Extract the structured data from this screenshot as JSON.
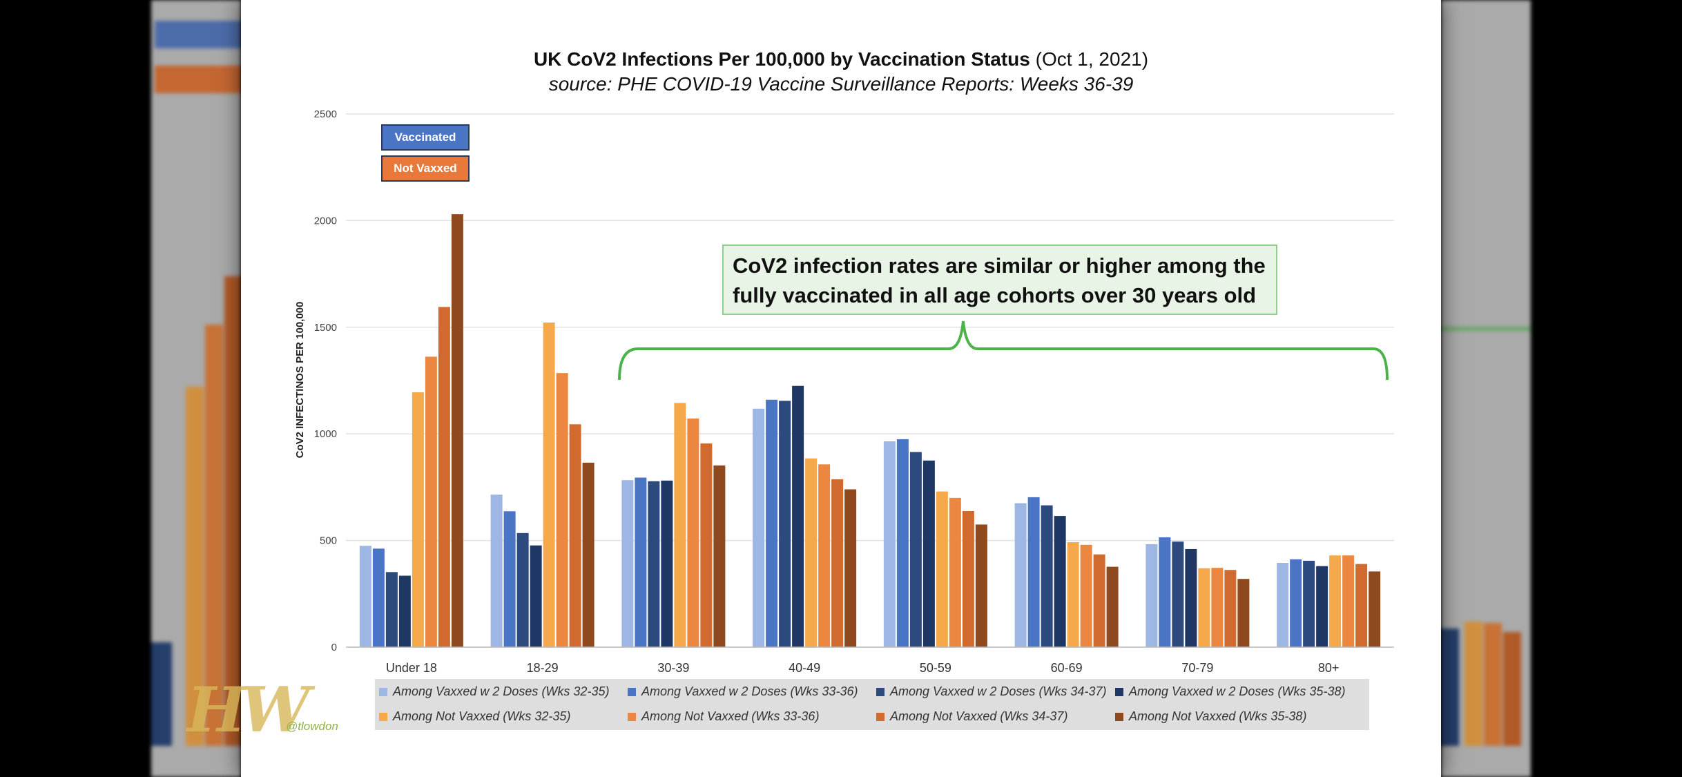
{
  "chart_data": {
    "type": "bar",
    "title": "UK CoV2 Infections Per 100,000 by Vaccination Status",
    "title_date": "(Oct 1, 2021)",
    "subtitle": "source: PHE COVID-19 Vaccine Surveillance Reports: Weeks 36-39",
    "ylabel": "CoV2 INFECTINOS PER 100,000",
    "xlabel": "",
    "ylim": [
      0,
      2500
    ],
    "yticks": [
      "0",
      "500",
      "1000",
      "1500",
      "2000",
      "2500"
    ],
    "grid": true,
    "legend_position": "bottom",
    "categories": [
      "Under 18",
      "18-29",
      "30-39",
      "40-49",
      "50-59",
      "60-69",
      "70-79",
      "80+"
    ],
    "series": [
      {
        "name": "Among Vaxxed w 2 Doses (Wks 32-35)",
        "color": "#9db6e3",
        "values": [
          475,
          715,
          783,
          1118,
          965,
          675,
          483,
          395
        ]
      },
      {
        "name": "Among Vaxxed w 2 Doses (Wks 33-36)",
        "color": "#4a74c4",
        "values": [
          462,
          637,
          795,
          1160,
          975,
          703,
          515,
          412
        ]
      },
      {
        "name": "Among Vaxxed w 2 Doses (Wks 34-37)",
        "color": "#2c4a7e",
        "values": [
          352,
          535,
          778,
          1155,
          915,
          665,
          495,
          405
        ]
      },
      {
        "name": "Among Vaxxed w 2 Doses (Wks 35-38)",
        "color": "#1f3765",
        "values": [
          335,
          477,
          781,
          1225,
          875,
          615,
          460,
          380
        ]
      },
      {
        "name": "Among Not Vaxxed (Wks 32-35)",
        "color": "#f5a94a",
        "values": [
          1195,
          1522,
          1145,
          885,
          730,
          492,
          370,
          430
        ]
      },
      {
        "name": "Among Not Vaxxed (Wks 33-36)",
        "color": "#eb8740",
        "values": [
          1362,
          1285,
          1072,
          857,
          700,
          480,
          372,
          430
        ]
      },
      {
        "name": "Among Not Vaxxed (Wks 34-37)",
        "color": "#d06a2e",
        "values": [
          1595,
          1045,
          955,
          787,
          638,
          435,
          362,
          390
        ]
      },
      {
        "name": "Among Not Vaxxed (Wks 35-38)",
        "color": "#8e4a1e",
        "values": [
          2030,
          865,
          852,
          740,
          575,
          377,
          320,
          355
        ]
      }
    ],
    "annotation": "CoV2 infection rates are similar or higher among the fully vaccinated in all age cohorts over 30 years old",
    "legend_boxes": [
      "Vaccinated",
      "Not Vaxxed"
    ]
  },
  "credit": {
    "logo": "HW",
    "handle": "@tlowdon"
  }
}
